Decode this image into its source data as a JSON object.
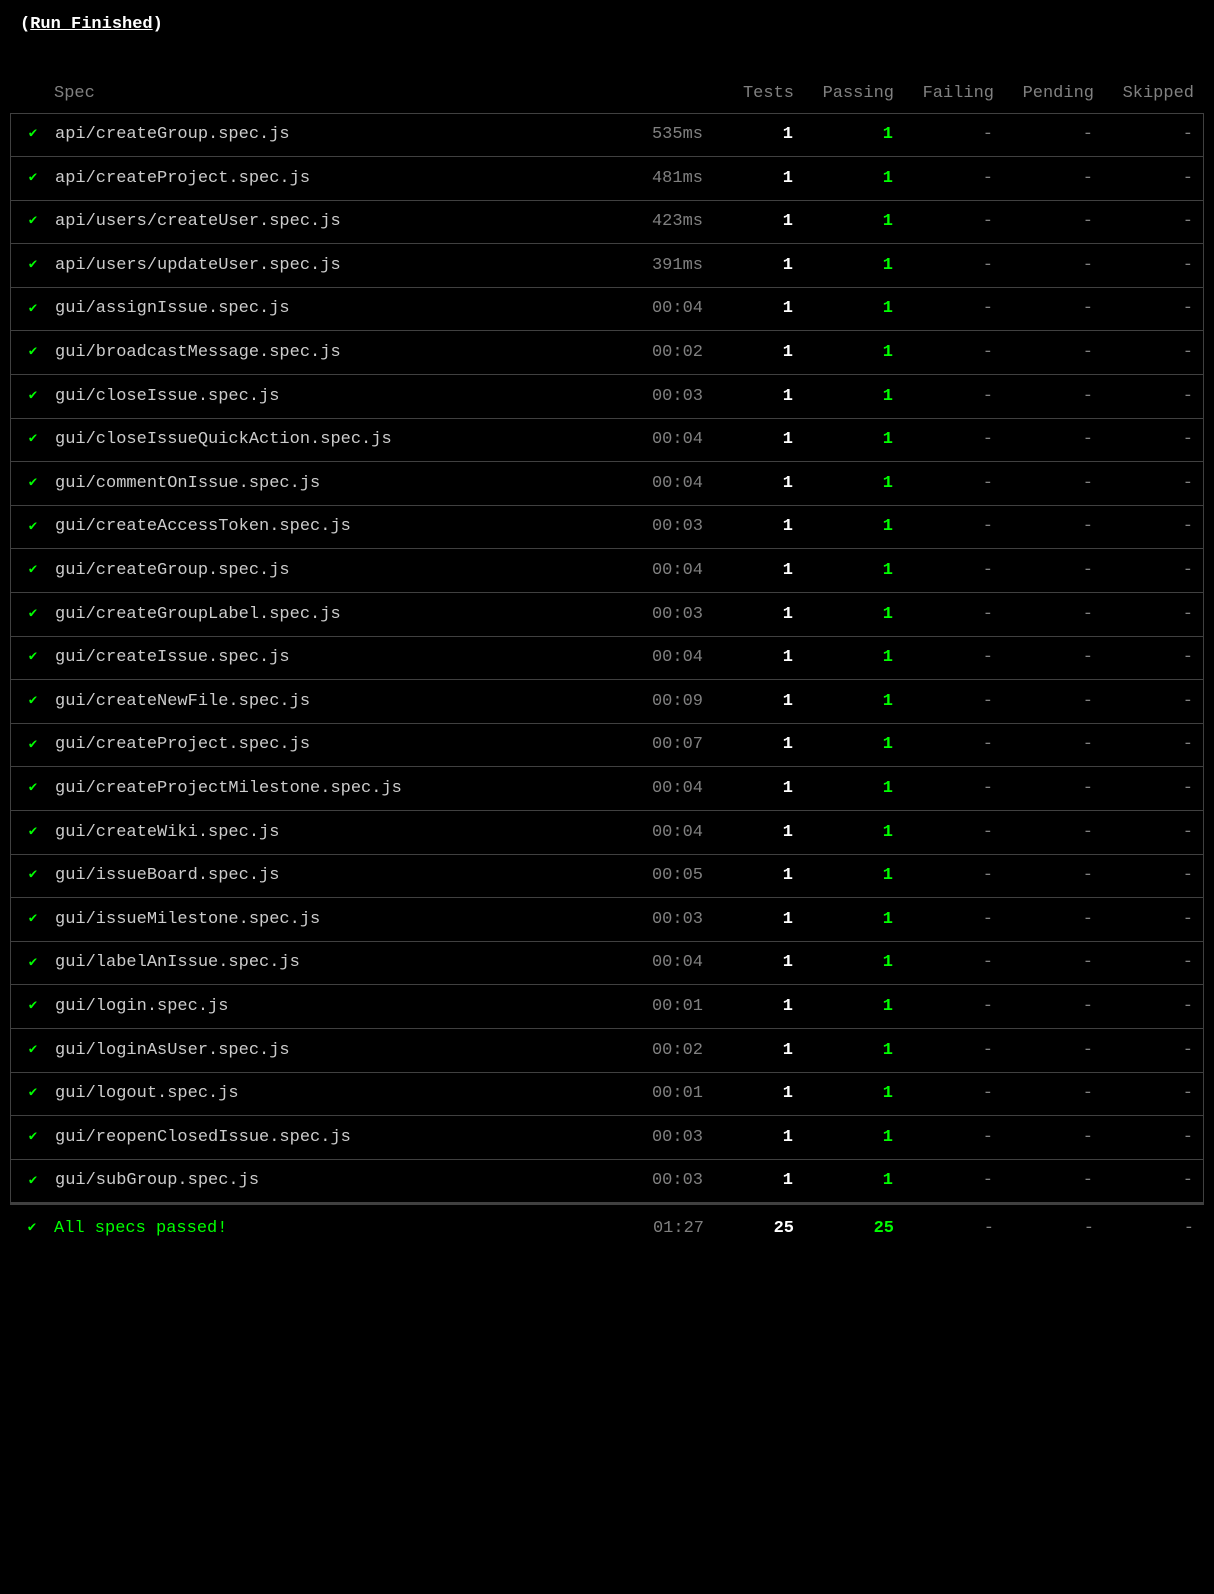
{
  "title_prefix": "(",
  "title_text": "Run Finished",
  "title_suffix": ")",
  "colors": {
    "background": "#000000",
    "text_primary": "#cccccc",
    "text_bright": "#ffffff",
    "text_dim": "#808080",
    "accent_green": "#00ff00",
    "border": "#404040"
  },
  "headers": {
    "spec": "Spec",
    "tests": "Tests",
    "passing": "Passing",
    "failing": "Failing",
    "pending": "Pending",
    "skipped": "Skipped"
  },
  "check_glyph": "✔",
  "dash_glyph": "-",
  "rows": [
    {
      "spec": "api/createGroup.spec.js",
      "duration": "535ms",
      "tests": "1",
      "passing": "1",
      "failing": "-",
      "pending": "-",
      "skipped": "-"
    },
    {
      "spec": "api/createProject.spec.js",
      "duration": "481ms",
      "tests": "1",
      "passing": "1",
      "failing": "-",
      "pending": "-",
      "skipped": "-"
    },
    {
      "spec": "api/users/createUser.spec.js",
      "duration": "423ms",
      "tests": "1",
      "passing": "1",
      "failing": "-",
      "pending": "-",
      "skipped": "-"
    },
    {
      "spec": "api/users/updateUser.spec.js",
      "duration": "391ms",
      "tests": "1",
      "passing": "1",
      "failing": "-",
      "pending": "-",
      "skipped": "-"
    },
    {
      "spec": "gui/assignIssue.spec.js",
      "duration": "00:04",
      "tests": "1",
      "passing": "1",
      "failing": "-",
      "pending": "-",
      "skipped": "-"
    },
    {
      "spec": "gui/broadcastMessage.spec.js",
      "duration": "00:02",
      "tests": "1",
      "passing": "1",
      "failing": "-",
      "pending": "-",
      "skipped": "-"
    },
    {
      "spec": "gui/closeIssue.spec.js",
      "duration": "00:03",
      "tests": "1",
      "passing": "1",
      "failing": "-",
      "pending": "-",
      "skipped": "-"
    },
    {
      "spec": "gui/closeIssueQuickAction.spec.js",
      "duration": "00:04",
      "tests": "1",
      "passing": "1",
      "failing": "-",
      "pending": "-",
      "skipped": "-"
    },
    {
      "spec": "gui/commentOnIssue.spec.js",
      "duration": "00:04",
      "tests": "1",
      "passing": "1",
      "failing": "-",
      "pending": "-",
      "skipped": "-"
    },
    {
      "spec": "gui/createAccessToken.spec.js",
      "duration": "00:03",
      "tests": "1",
      "passing": "1",
      "failing": "-",
      "pending": "-",
      "skipped": "-"
    },
    {
      "spec": "gui/createGroup.spec.js",
      "duration": "00:04",
      "tests": "1",
      "passing": "1",
      "failing": "-",
      "pending": "-",
      "skipped": "-"
    },
    {
      "spec": "gui/createGroupLabel.spec.js",
      "duration": "00:03",
      "tests": "1",
      "passing": "1",
      "failing": "-",
      "pending": "-",
      "skipped": "-"
    },
    {
      "spec": "gui/createIssue.spec.js",
      "duration": "00:04",
      "tests": "1",
      "passing": "1",
      "failing": "-",
      "pending": "-",
      "skipped": "-"
    },
    {
      "spec": "gui/createNewFile.spec.js",
      "duration": "00:09",
      "tests": "1",
      "passing": "1",
      "failing": "-",
      "pending": "-",
      "skipped": "-"
    },
    {
      "spec": "gui/createProject.spec.js",
      "duration": "00:07",
      "tests": "1",
      "passing": "1",
      "failing": "-",
      "pending": "-",
      "skipped": "-"
    },
    {
      "spec": "gui/createProjectMilestone.spec.js",
      "duration": "00:04",
      "tests": "1",
      "passing": "1",
      "failing": "-",
      "pending": "-",
      "skipped": "-"
    },
    {
      "spec": "gui/createWiki.spec.js",
      "duration": "00:04",
      "tests": "1",
      "passing": "1",
      "failing": "-",
      "pending": "-",
      "skipped": "-"
    },
    {
      "spec": "gui/issueBoard.spec.js",
      "duration": "00:05",
      "tests": "1",
      "passing": "1",
      "failing": "-",
      "pending": "-",
      "skipped": "-"
    },
    {
      "spec": "gui/issueMilestone.spec.js",
      "duration": "00:03",
      "tests": "1",
      "passing": "1",
      "failing": "-",
      "pending": "-",
      "skipped": "-"
    },
    {
      "spec": "gui/labelAnIssue.spec.js",
      "duration": "00:04",
      "tests": "1",
      "passing": "1",
      "failing": "-",
      "pending": "-",
      "skipped": "-"
    },
    {
      "spec": "gui/login.spec.js",
      "duration": "00:01",
      "tests": "1",
      "passing": "1",
      "failing": "-",
      "pending": "-",
      "skipped": "-"
    },
    {
      "spec": "gui/loginAsUser.spec.js",
      "duration": "00:02",
      "tests": "1",
      "passing": "1",
      "failing": "-",
      "pending": "-",
      "skipped": "-"
    },
    {
      "spec": "gui/logout.spec.js",
      "duration": "00:01",
      "tests": "1",
      "passing": "1",
      "failing": "-",
      "pending": "-",
      "skipped": "-"
    },
    {
      "spec": "gui/reopenClosedIssue.spec.js",
      "duration": "00:03",
      "tests": "1",
      "passing": "1",
      "failing": "-",
      "pending": "-",
      "skipped": "-"
    },
    {
      "spec": "gui/subGroup.spec.js",
      "duration": "00:03",
      "tests": "1",
      "passing": "1",
      "failing": "-",
      "pending": "-",
      "skipped": "-"
    }
  ],
  "summary": {
    "label": "All specs passed!",
    "duration": "01:27",
    "tests": "25",
    "passing": "25",
    "failing": "-",
    "pending": "-",
    "skipped": "-"
  }
}
